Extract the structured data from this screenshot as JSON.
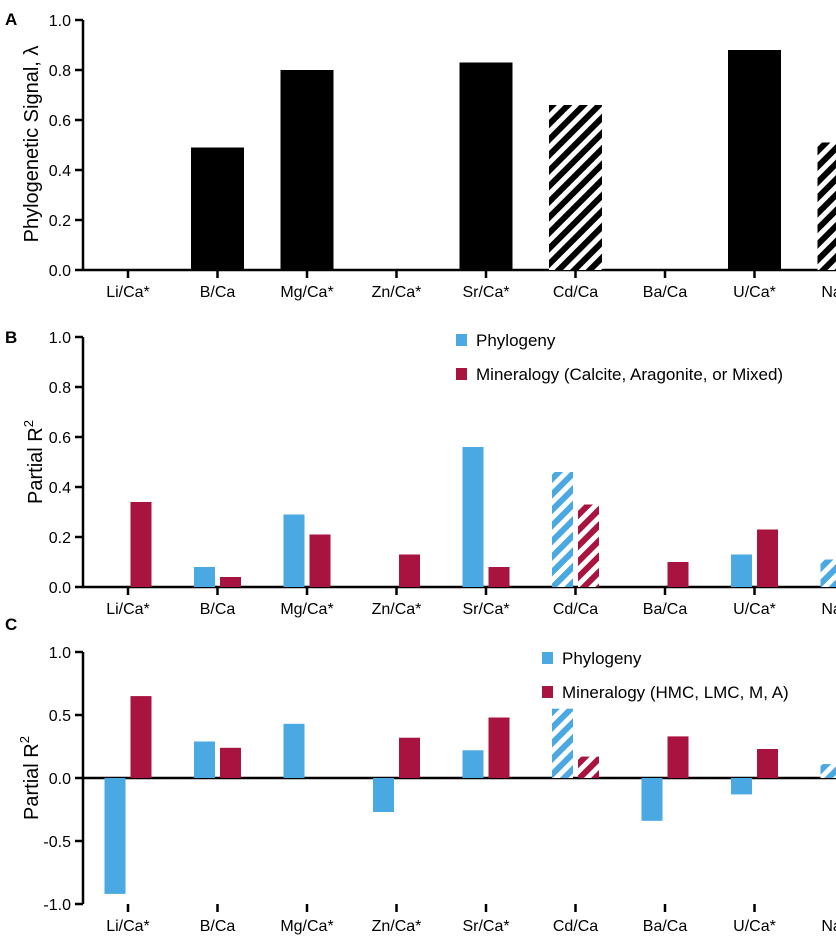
{
  "colors": {
    "black": "#000000",
    "phylogeny": "#4aa8e2",
    "mineralogy": "#a8133f",
    "hatch_bg": "#ffffff"
  },
  "chart_data": [
    {
      "panel": "A",
      "type": "bar",
      "ylabel": "Phylogenetic Signal, λ",
      "ylim": [
        0,
        1.0
      ],
      "yticks": [
        "0.0",
        "0.2",
        "0.4",
        "0.6",
        "0.8",
        "1.0"
      ],
      "categories": [
        "Li/Ca*",
        "B/Ca",
        "Mg/Ca*",
        "Zn/Ca*",
        "Sr/Ca*",
        "Cd/Ca",
        "Ba/Ca",
        "U/Ca*",
        "Na/Ca"
      ],
      "series": [
        {
          "values": [
            0,
            0.49,
            0.8,
            0,
            0.83,
            0.66,
            0,
            0.88,
            0.51
          ],
          "hatched": [
            false,
            false,
            false,
            false,
            false,
            true,
            false,
            false,
            true
          ]
        }
      ]
    },
    {
      "panel": "B",
      "type": "bar",
      "ylabel": "Partial R",
      "ylabel_sup": "2",
      "ylim": [
        0,
        1.0
      ],
      "yticks": [
        "0.0",
        "0.2",
        "0.4",
        "0.6",
        "0.8",
        "1.0"
      ],
      "categories": [
        "Li/Ca*",
        "B/Ca",
        "Mg/Ca*",
        "Zn/Ca*",
        "Sr/Ca*",
        "Cd/Ca",
        "Ba/Ca",
        "U/Ca*",
        "Na/Ca"
      ],
      "series": [
        {
          "name": "Phylogeny",
          "values": [
            0,
            0.08,
            0.29,
            0,
            0.56,
            0.46,
            0,
            0.13,
            0.11
          ],
          "hatched": [
            false,
            false,
            false,
            false,
            false,
            true,
            false,
            false,
            true
          ]
        },
        {
          "name": "Mineralogy (Calcite, Aragonite, or Mixed)",
          "values": [
            0.34,
            0.04,
            0.21,
            0.13,
            0.08,
            0.33,
            0.1,
            0.23,
            null
          ],
          "hatched": [
            false,
            false,
            false,
            false,
            false,
            true,
            false,
            false,
            false
          ]
        }
      ],
      "legend": "top-right"
    },
    {
      "panel": "C",
      "type": "bar",
      "ylabel": "Partial R",
      "ylabel_sup": "2",
      "ylim": [
        -1.0,
        1.0
      ],
      "yticks": [
        "-1.0",
        "-0.5",
        "0.0",
        "0.5",
        "1.0"
      ],
      "categories": [
        "Li/Ca*",
        "B/Ca",
        "Mg/Ca*",
        "Zn/Ca*",
        "Sr/Ca*",
        "Cd/Ca",
        "Ba/Ca",
        "U/Ca*",
        "Na/Ca"
      ],
      "series": [
        {
          "name": "Phylogeny",
          "values": [
            -0.92,
            0.29,
            0.43,
            -0.27,
            0.22,
            0.55,
            -0.34,
            -0.13,
            0.11
          ],
          "hatched": [
            false,
            false,
            false,
            false,
            false,
            true,
            false,
            false,
            true
          ]
        },
        {
          "name": "Mineralogy (HMC, LMC, M, A)",
          "values": [
            0.65,
            0.24,
            null,
            0.32,
            0.48,
            0.17,
            0.33,
            0.23,
            null
          ],
          "hatched": [
            false,
            false,
            false,
            false,
            false,
            true,
            false,
            false,
            false
          ]
        }
      ],
      "legend": "top-right"
    }
  ]
}
